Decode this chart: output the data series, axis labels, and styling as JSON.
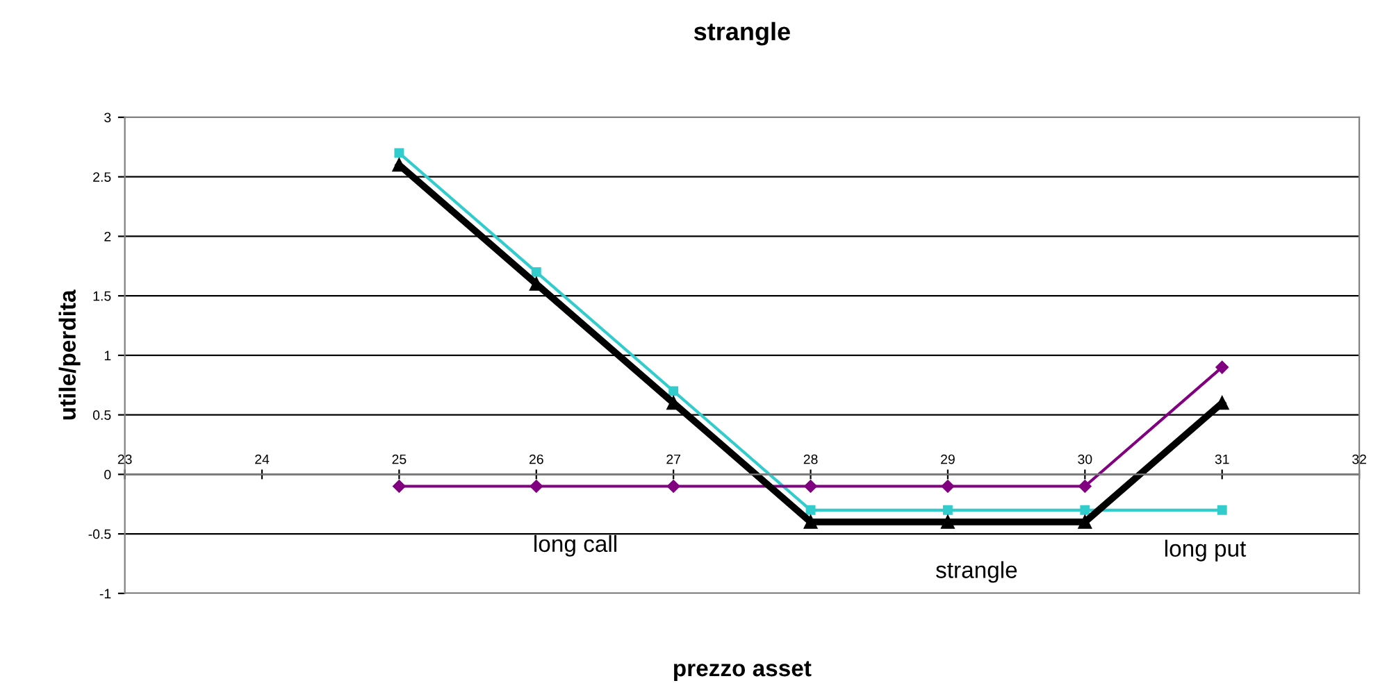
{
  "chart_data": {
    "type": "line",
    "title": "strangle",
    "xlabel": "prezzo asset",
    "ylabel": "utile/perdita",
    "x": [
      25,
      26,
      27,
      28,
      29,
      30,
      31
    ],
    "series": [
      {
        "color": "#33cccc",
        "marker": "square",
        "values": [
          2.7,
          1.7,
          0.7,
          -0.3,
          -0.3,
          -0.3,
          -0.3
        ]
      },
      {
        "color": "#800080",
        "marker": "diamond",
        "values": [
          -0.1,
          -0.1,
          -0.1,
          -0.1,
          -0.1,
          -0.1,
          0.9
        ]
      },
      {
        "color": "#000000",
        "marker": "triangle",
        "values": [
          2.6,
          1.6,
          0.6,
          -0.4,
          -0.4,
          -0.4,
          0.6
        ]
      }
    ],
    "xlim": [
      23,
      32
    ],
    "xticks": [
      23,
      24,
      25,
      26,
      27,
      28,
      29,
      30,
      31,
      32
    ],
    "ylim": [
      -1,
      3
    ],
    "yticks": [
      -1,
      -0.5,
      0,
      0.5,
      1,
      1.5,
      2,
      2.5,
      3
    ],
    "grid": "y",
    "annotations": [
      "long call",
      "strangle",
      "long put"
    ]
  }
}
